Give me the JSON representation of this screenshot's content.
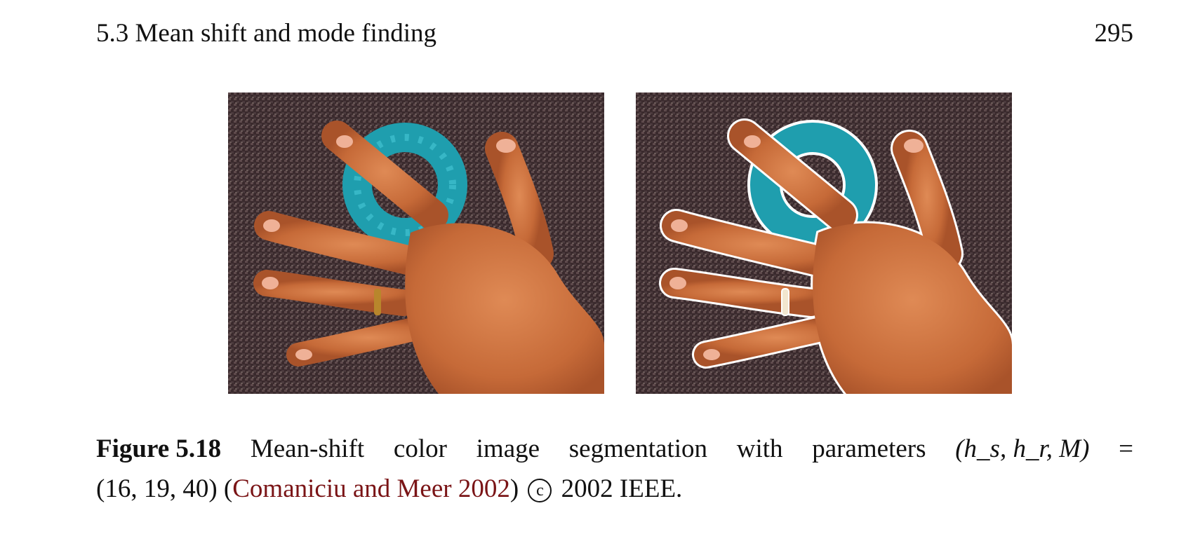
{
  "header": {
    "section_title": "5.3 Mean shift and mode finding",
    "page_number": "295"
  },
  "figure": {
    "images": [
      {
        "name": "original hand image"
      },
      {
        "name": "segmented hand image with white region boundaries"
      }
    ],
    "caption": {
      "label": "Figure 5.18",
      "words": [
        "Mean-shift",
        "color",
        "image",
        "segmentation",
        "with",
        "parameters"
      ],
      "params_lhs": "(h_s, h_r, M)",
      "equals": "=",
      "params_rhs": "(16, 19, 40)",
      "citation_open": "(",
      "citation": "Comaniciu and Meer 2002",
      "citation_close": ")",
      "copyright_symbol": "c",
      "copyright_text": "2002 IEEE."
    }
  }
}
